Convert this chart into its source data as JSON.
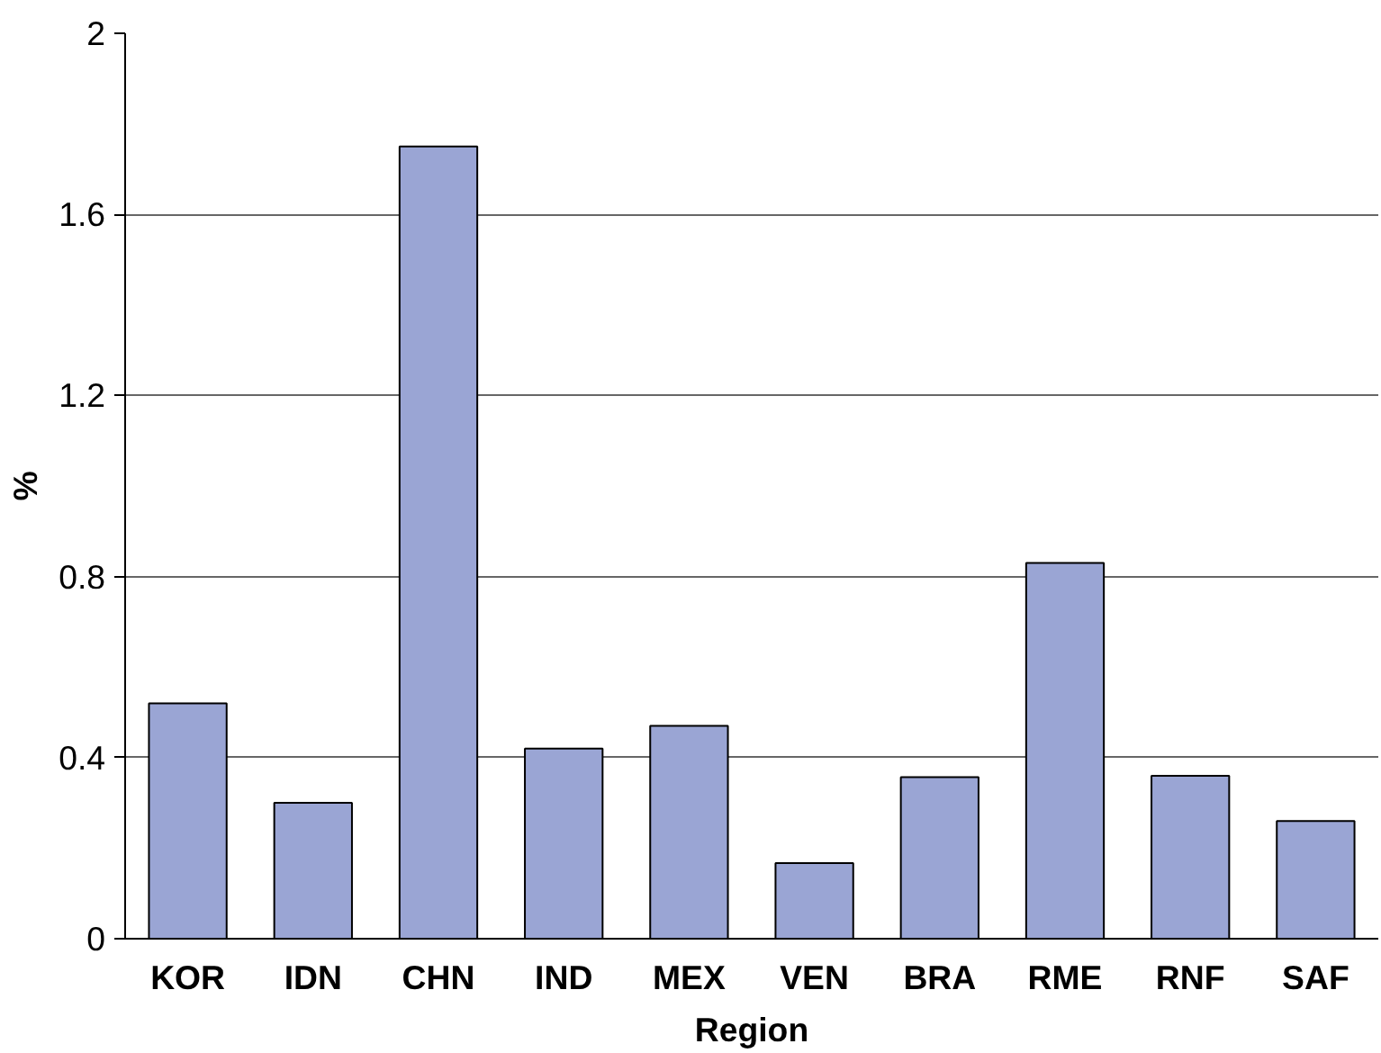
{
  "chart_data": {
    "type": "bar",
    "xlabel": "Region",
    "ylabel": "%",
    "categories": [
      "KOR",
      "IDN",
      "CHN",
      "IND",
      "MEX",
      "VEN",
      "BRA",
      "RME",
      "RNF",
      "SAF"
    ],
    "values": [
      0.52,
      0.3,
      1.75,
      0.42,
      0.47,
      0.167,
      0.357,
      0.83,
      0.36,
      0.26
    ],
    "color": "#9aa5d4",
    "ylim": [
      0,
      2
    ],
    "yticks": [
      0,
      {
        "value": 0.4,
        "label": "0.4"
      },
      {
        "value": 0.8,
        "label": "0.8"
      },
      {
        "value": 1.2,
        "label": "1.2"
      },
      {
        "value": 1.6,
        "label": "1.6"
      },
      2
    ],
    "grid": "y"
  }
}
